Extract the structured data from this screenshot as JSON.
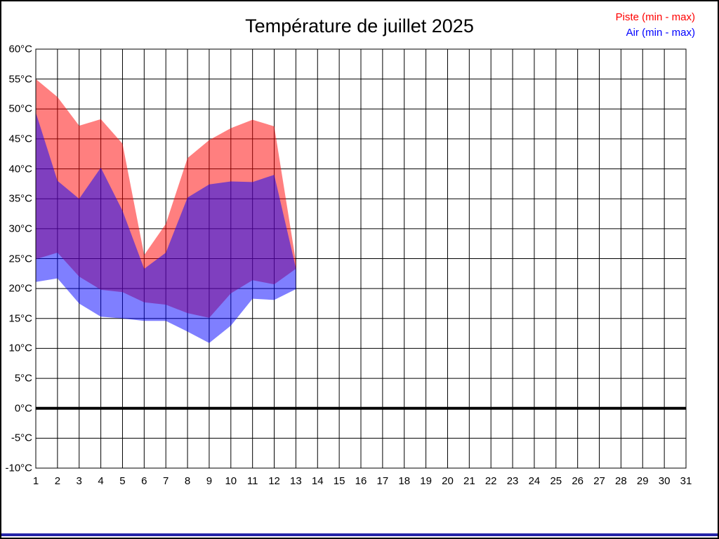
{
  "title": "Température de juillet 2025",
  "legend": [
    {
      "label": "Piste (min - max)",
      "color": "#ff0000"
    },
    {
      "label": "Air (min - max)",
      "color": "#0000ff"
    }
  ],
  "colors": {
    "piste_band": "#ff0000",
    "air_band": "#0000ff",
    "grid": "#000000",
    "zero_line": "#000000",
    "plot_border": "#000000",
    "bottom_bar": "#2424a8"
  },
  "chart_data": {
    "type": "area",
    "title": "Température de juillet 2025",
    "xlabel": "",
    "ylabel": "",
    "unit": "°C",
    "xlim": [
      1,
      31
    ],
    "ylim": [
      -10,
      60
    ],
    "grid": true,
    "zero_line_thick": true,
    "legend_position": "top-right",
    "x_ticks": [
      1,
      2,
      3,
      4,
      5,
      6,
      7,
      8,
      9,
      10,
      11,
      12,
      13,
      14,
      15,
      16,
      17,
      18,
      19,
      20,
      21,
      22,
      23,
      24,
      25,
      26,
      27,
      28,
      29,
      30,
      31
    ],
    "y_ticks": [
      60,
      55,
      50,
      45,
      40,
      35,
      30,
      25,
      20,
      15,
      10,
      5,
      0,
      -5,
      -10
    ],
    "x": [
      1,
      2,
      3,
      4,
      5,
      6,
      7,
      8,
      9,
      10,
      11,
      12,
      13
    ],
    "series": [
      {
        "name": "Piste (min - max)",
        "color": "#ff0000",
        "min": [
          24.9,
          26.0,
          22.0,
          19.8,
          19.4,
          17.7,
          17.3,
          15.9,
          15.1,
          19.2,
          21.4,
          20.7,
          23.3
        ],
        "max": [
          55.0,
          52.0,
          47.2,
          48.3,
          44.2,
          25.6,
          30.8,
          41.8,
          44.8,
          46.8,
          48.2,
          47.1,
          24.5
        ]
      },
      {
        "name": "Air (min - max)",
        "color": "#0000ff",
        "min": [
          21.1,
          21.7,
          17.5,
          15.3,
          15.0,
          14.6,
          14.6,
          12.8,
          10.9,
          13.8,
          18.3,
          18.1,
          19.9
        ],
        "max": [
          49.4,
          38.0,
          35.0,
          40.2,
          33.0,
          23.3,
          26.0,
          35.2,
          37.4,
          37.9,
          37.8,
          39.0,
          23.4
        ]
      }
    ]
  }
}
